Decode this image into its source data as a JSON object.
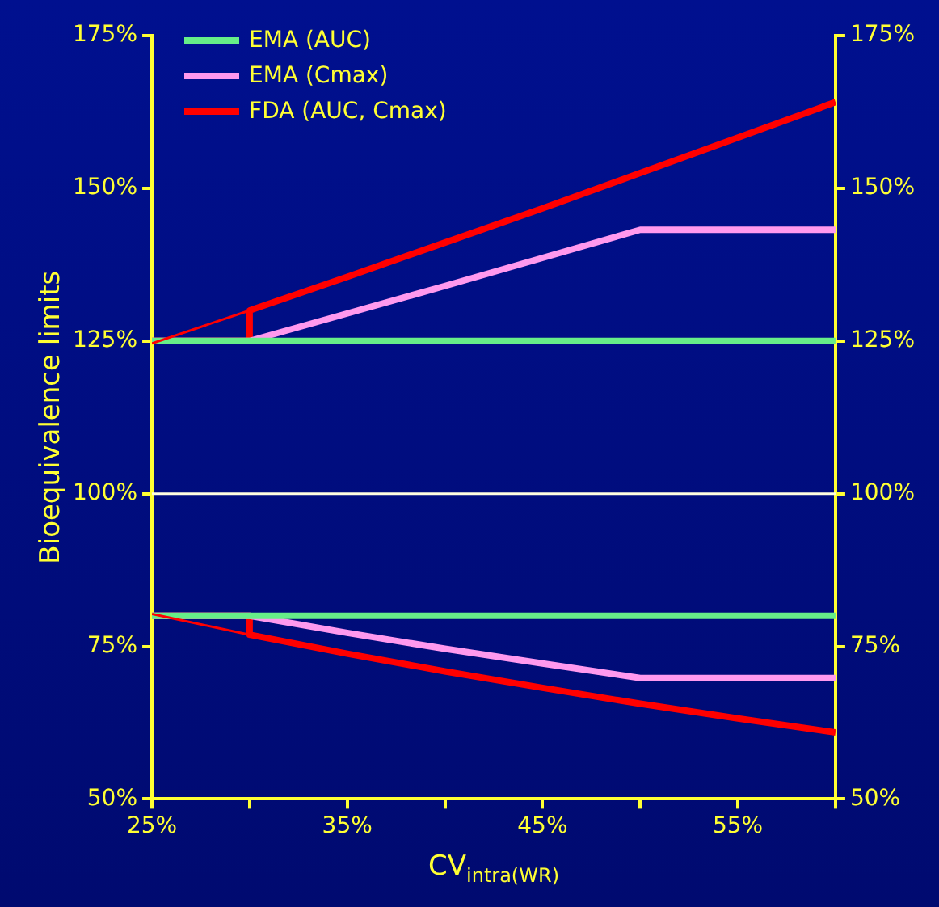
{
  "chart_data": {
    "type": "line",
    "xlabel": "CV$_{intra(WR)}$",
    "ylabel": "Bioequivalence limits",
    "xlim": [
      25,
      60
    ],
    "xticks": [
      {
        "value": 25,
        "label": "25%"
      },
      {
        "value": 30,
        "label": null
      },
      {
        "value": 35,
        "label": "35%"
      },
      {
        "value": 40,
        "label": null
      },
      {
        "value": 45,
        "label": "45%"
      },
      {
        "value": 50,
        "label": null
      },
      {
        "value": 55,
        "label": "55%"
      },
      {
        "value": 60,
        "label": null
      }
    ],
    "ylim": [
      50,
      175
    ],
    "yticks": [
      {
        "value": 50,
        "label": "50%"
      },
      {
        "value": 75,
        "label": "75%"
      },
      {
        "value": 100,
        "label": "100%"
      },
      {
        "value": 125,
        "label": "125%"
      },
      {
        "value": 150,
        "label": "150%"
      },
      {
        "value": 175,
        "label": "175%"
      }
    ],
    "y2lim": [
      50,
      175
    ],
    "y2ticks": [
      {
        "value": 50,
        "label": "50%"
      },
      {
        "value": 75,
        "label": "75%"
      },
      {
        "value": 100,
        "label": "100%"
      },
      {
        "value": 125,
        "label": "125%"
      },
      {
        "value": 150,
        "label": "150%"
      },
      {
        "value": 175,
        "label": "175%"
      }
    ],
    "grid": false,
    "legend": "top left",
    "marker": "none",
    "line_style": "solid",
    "ref_lines": [
      {
        "axis": "y",
        "value": 100,
        "color": "#ffffe0"
      }
    ],
    "series": [
      {
        "color": "#ff0000",
        "x": [
          25,
          30
        ],
        "values": [
          124.6,
          130
        ]
      },
      {
        "color": "#ff0000",
        "x": [
          25,
          30
        ],
        "values": [
          80.3,
          76.9
        ]
      },
      {
        "name": "EMA (AUC)",
        "color": "#66ee88",
        "x": [
          25,
          60
        ],
        "values": [
          125,
          125
        ]
      },
      {
        "color": "#66ee88",
        "x": [
          25,
          60
        ],
        "values": [
          80,
          80
        ]
      },
      {
        "name": "EMA (Cmax)",
        "color": "#ff99ee",
        "x": [
          25,
          30,
          35,
          40,
          45,
          50,
          60
        ],
        "values": [
          125,
          125,
          129.5,
          134,
          138.6,
          143.2,
          143.2
        ]
      },
      {
        "color": "#ff99ee",
        "x": [
          25,
          30,
          35,
          40,
          45,
          50,
          60
        ],
        "values": [
          80,
          80,
          77.2,
          74.6,
          72.2,
          69.8,
          69.8
        ]
      },
      {
        "name": "FDA (AUC, Cmax)",
        "color": "#ff0000",
        "x": [
          25,
          30,
          30,
          35,
          40,
          45,
          50,
          55,
          60
        ],
        "values": [
          125,
          125,
          130,
          135.5,
          141.1,
          146.7,
          152.5,
          158.3,
          164.1
        ]
      },
      {
        "color": "#ff0000",
        "x": [
          25,
          30,
          30,
          35,
          40,
          45,
          50,
          55,
          60
        ],
        "values": [
          80,
          80,
          76.9,
          73.8,
          70.9,
          68.2,
          65.6,
          63.2,
          60.9
        ]
      }
    ]
  }
}
